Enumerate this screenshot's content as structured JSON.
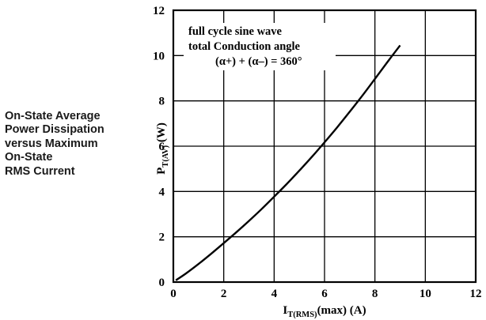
{
  "caption_lines": [
    "On-State Average",
    "Power Dissipation",
    "versus Maximum",
    "On-State",
    "RMS Current"
  ],
  "chart_data": {
    "type": "line",
    "title": "",
    "xlabel": {
      "main": "I",
      "sub": "T(RMS)",
      "rest": "(max) (A)"
    },
    "ylabel": {
      "main": "P",
      "sub": "T(AV)",
      "rest": " (W)"
    },
    "xlim": [
      0,
      12
    ],
    "ylim": [
      0,
      12
    ],
    "xticks": [
      "0",
      "2",
      "4",
      "6",
      "8",
      "10",
      "12"
    ],
    "yticks": [
      "0",
      "2",
      "4",
      "6",
      "8",
      "10",
      "12"
    ],
    "grid": true,
    "annotation": [
      "full cycle sine wave",
      "total Conduction angle",
      "(α+) + (α–) = 360°"
    ],
    "series": [
      {
        "color": "#000000",
        "x": [
          0.1,
          0.5,
          1,
          1.5,
          2,
          2.5,
          3,
          3.5,
          4,
          4.5,
          5,
          5.5,
          6,
          6.5,
          7,
          7.5,
          8,
          8.5,
          9
        ],
        "y": [
          0.08,
          0.38,
          0.8,
          1.25,
          1.72,
          2.2,
          2.7,
          3.22,
          3.77,
          4.33,
          4.92,
          5.53,
          6.17,
          6.83,
          7.52,
          8.23,
          8.97,
          9.72,
          10.45
        ]
      }
    ]
  }
}
